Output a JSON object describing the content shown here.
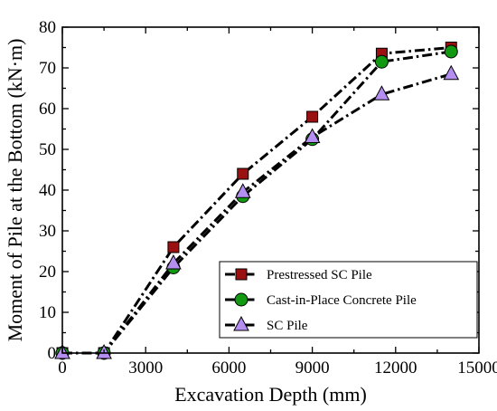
{
  "chart_data": {
    "type": "line",
    "title": "",
    "xlabel": "Excavation Depth (mm)",
    "ylabel": "Moment of Pile at the Bottom (kN·m)",
    "xlim": [
      0,
      15000
    ],
    "ylim": [
      0,
      80
    ],
    "xticks": [
      "0",
      "3000",
      "6000",
      "9000",
      "12000",
      "15000"
    ],
    "yticks": [
      "0",
      "10",
      "20",
      "30",
      "40",
      "50",
      "60",
      "70",
      "80"
    ],
    "grid": false,
    "legend_position": "bottom-right",
    "series": [
      {
        "name": "Prestressed SC Pile",
        "marker": "square",
        "color": "#9b1111",
        "x": [
          0,
          1500,
          4000,
          6500,
          9000,
          11500,
          14000
        ],
        "y": [
          0,
          0,
          26,
          44,
          58,
          73.5,
          75
        ]
      },
      {
        "name": "Cast-in-Place Concrete Pile",
        "marker": "circle",
        "color": "#119911",
        "x": [
          0,
          1500,
          4000,
          6500,
          9000,
          11500,
          14000
        ],
        "y": [
          0,
          0,
          21,
          38.5,
          52.5,
          71.5,
          74
        ]
      },
      {
        "name": "SC Pile",
        "marker": "triangle",
        "color": "#b48ef0",
        "x": [
          0,
          1500,
          4000,
          6500,
          9000,
          11500,
          14000
        ],
        "y": [
          0,
          0,
          22,
          39.5,
          53,
          63.5,
          68.5
        ]
      }
    ]
  }
}
